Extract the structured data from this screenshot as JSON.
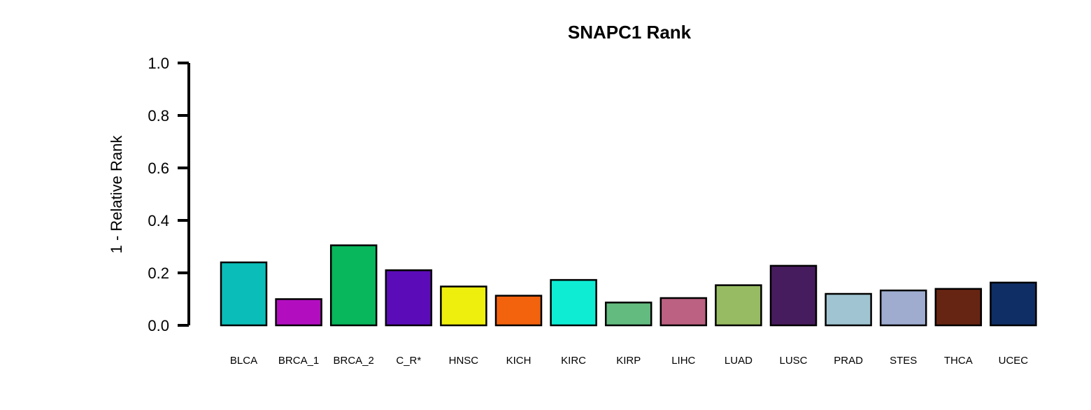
{
  "chart_data": {
    "type": "bar",
    "title": "SNAPC1 Rank",
    "xlabel": "",
    "ylabel": "1 - Relative Rank",
    "ylim": [
      0,
      1
    ],
    "yticks": [
      "0.0",
      "0.2",
      "0.4",
      "0.6",
      "0.8",
      "1.0"
    ],
    "ytick_values": [
      0,
      0.2,
      0.4,
      0.6,
      0.8,
      1.0
    ],
    "grid": false,
    "legend": "none",
    "categories": [
      "BLCA",
      "BRCA_1",
      "BRCA_2",
      "C_R*",
      "HNSC",
      "KICH",
      "KIRC",
      "KIRP",
      "LIHC",
      "LUAD",
      "LUSC",
      "PRAD",
      "STES",
      "THCA",
      "UCEC"
    ],
    "values": [
      0.24,
      0.1,
      0.305,
      0.21,
      0.148,
      0.113,
      0.173,
      0.087,
      0.104,
      0.153,
      0.227,
      0.12,
      0.133,
      0.139,
      0.163
    ],
    "colors": [
      "#0BBDB8",
      "#B20EC0",
      "#08B65B",
      "#5B0CB8",
      "#EFEF0D",
      "#F3620D",
      "#0EEDD4",
      "#63BB7F",
      "#BC6181",
      "#97BB62",
      "#471C5E",
      "#A0C4D1",
      "#9FACD0",
      "#662512",
      "#0F2E65"
    ]
  }
}
